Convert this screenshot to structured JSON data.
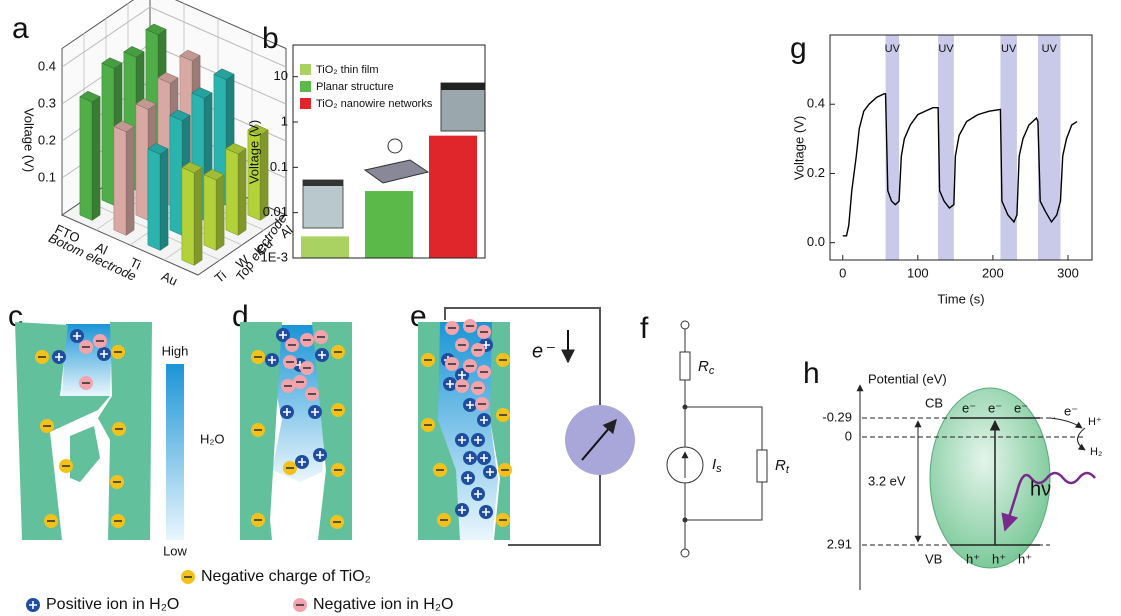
{
  "panels": {
    "a": {
      "label": "a",
      "type": "bar3d",
      "zlabel": "Voltage (V)",
      "xlabel": "Botom electrode",
      "ylabel": "Top electrode",
      "categories": [
        "FTO",
        "Al",
        "Ti",
        "Au"
      ],
      "y_categories": [
        "Ti",
        "W",
        "Cu",
        "Al"
      ],
      "series": [
        {
          "color": "#4fae48",
          "values": [
            0.32,
            0.37,
            0.36,
            0.38
          ]
        },
        {
          "color": "#d8a9a2",
          "values": [
            0.28,
            0.3,
            0.33,
            0.35
          ]
        },
        {
          "color": "#2bb3ae",
          "values": [
            0.26,
            0.31,
            0.33,
            0.34
          ]
        },
        {
          "color": "#b3d23a",
          "values": [
            0.25,
            0.19,
            0.22,
            0.23
          ]
        }
      ],
      "zlim": [
        0,
        0.45
      ],
      "zticks": [
        0.1,
        0.2,
        0.3,
        0.4
      ]
    },
    "b": {
      "label": "b",
      "type": "bar",
      "ylabel": "Voltage (V)",
      "log_scale": true,
      "series": [
        {
          "name": "TiO₂ thin film",
          "color": "#a9d263",
          "values": [
            0.003
          ]
        },
        {
          "name": "Planar structure",
          "color": "#5bb94a",
          "values": [
            0.03
          ]
        },
        {
          "name": "TiO₂ nanowire networks",
          "color": "#e0262b",
          "values": [
            0.5
          ]
        }
      ],
      "ylim": [
        0.001,
        50
      ],
      "yticks": [
        {
          "value": 0.001,
          "label": "1E-3"
        },
        0.01,
        0.1,
        1,
        10
      ]
    },
    "c": {
      "label": "c",
      "colorbar": {
        "high": "High",
        "middle": "H₂O",
        "low": "Low"
      }
    },
    "d": {
      "label": "d"
    },
    "e": {
      "label": "e",
      "electron": "e⁻"
    },
    "f": {
      "label": "f",
      "components": [
        {
          "symbol": "R",
          "subscript": "c"
        },
        {
          "symbol": "I",
          "subscript": "s"
        },
        {
          "symbol": "R",
          "subscript": "t"
        }
      ]
    },
    "g": {
      "label": "g",
      "type": "line",
      "xlabel": "Time (s)",
      "ylabel": "Voltage (V)",
      "color": "#000000",
      "x": [
        0,
        5,
        8,
        12,
        18,
        22,
        28,
        35,
        45,
        55,
        57,
        60,
        65,
        70,
        75,
        78,
        82,
        90,
        100,
        110,
        120,
        127,
        129,
        135,
        142,
        148,
        150,
        155,
        165,
        180,
        195,
        210,
        212,
        220,
        228,
        232,
        235,
        240,
        248,
        258,
        260,
        263,
        270,
        278,
        285,
        290,
        293,
        298,
        305,
        312
      ],
      "values": [
        0.02,
        0.02,
        0.05,
        0.15,
        0.25,
        0.33,
        0.38,
        0.4,
        0.42,
        0.43,
        0.43,
        0.15,
        0.12,
        0.11,
        0.12,
        0.25,
        0.3,
        0.34,
        0.37,
        0.38,
        0.39,
        0.39,
        0.15,
        0.12,
        0.1,
        0.11,
        0.25,
        0.31,
        0.35,
        0.37,
        0.38,
        0.385,
        0.12,
        0.08,
        0.06,
        0.08,
        0.25,
        0.3,
        0.34,
        0.36,
        0.35,
        0.12,
        0.09,
        0.06,
        0.08,
        0.12,
        0.25,
        0.3,
        0.34,
        0.35
      ],
      "bands": [
        {
          "label": "UV",
          "x": [
            57,
            75
          ]
        },
        {
          "label": "UV",
          "x": [
            127,
            148
          ]
        },
        {
          "label": "UV",
          "x": [
            210,
            232
          ]
        },
        {
          "label": "UV",
          "x": [
            260,
            290
          ]
        }
      ],
      "band_color": "#c9c9ea",
      "xlim": [
        -17,
        332
      ],
      "ylim": [
        -0.05,
        0.6
      ],
      "xticks": [
        0,
        100,
        200,
        300
      ],
      "yticks": [
        {
          "value": 0,
          "label": "0.0"
        },
        0.2,
        0.4
      ]
    },
    "h": {
      "label": "h",
      "axis_label": "Potential (eV)",
      "levels": [
        "-0.29",
        "0",
        "2.91"
      ],
      "gap": "3.2 eV",
      "cb": "CB",
      "vb": "VB",
      "electrons": [
        "e⁻",
        "e⁻",
        "e⁻",
        "e⁻"
      ],
      "holes": [
        "h⁺",
        "h⁺",
        "h⁺"
      ],
      "proton": "H⁺",
      "hydrogen": "H₂",
      "photon": "hν"
    }
  },
  "legend": [
    "Negative charge of TiO₂",
    "Positive ion in H₂O",
    "Negative ion in H₂O"
  ]
}
